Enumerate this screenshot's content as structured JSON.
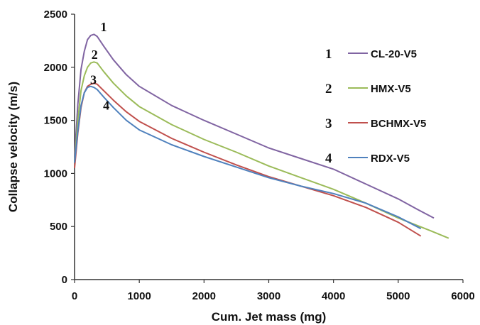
{
  "chart_data": {
    "type": "line",
    "xlabel": "Cum. Jet mass (mg)",
    "ylabel": "Collapse velocity (m/s)",
    "xlim": [
      0,
      6000
    ],
    "ylim": [
      0,
      2500
    ],
    "xticks": [
      "0",
      "1000",
      "2000",
      "3000",
      "4000",
      "5000",
      "6000"
    ],
    "yticks": [
      "0",
      "500",
      "1000",
      "1500",
      "2000",
      "2500"
    ],
    "grid": false,
    "legend_position": "top-right",
    "series": [
      {
        "name": "CL-20-V5",
        "number": "1",
        "color": "#8064A2",
        "x": [
          0,
          50,
          100,
          150,
          200,
          250,
          300,
          350,
          450,
          600,
          800,
          1000,
          1500,
          2000,
          2500,
          3000,
          3500,
          4000,
          4500,
          5000,
          5300,
          5550
        ],
        "y": [
          1150,
          1650,
          1980,
          2150,
          2260,
          2300,
          2310,
          2290,
          2200,
          2070,
          1930,
          1820,
          1640,
          1500,
          1370,
          1240,
          1140,
          1040,
          900,
          760,
          660,
          580
        ]
      },
      {
        "name": "HMX-V5",
        "number": "2",
        "color": "#9BBB59",
        "x": [
          0,
          50,
          100,
          150,
          200,
          250,
          300,
          350,
          450,
          600,
          800,
          1000,
          1500,
          2000,
          2500,
          3000,
          3500,
          4000,
          4500,
          5000,
          5500,
          5780
        ],
        "y": [
          1100,
          1500,
          1780,
          1920,
          2000,
          2040,
          2050,
          2040,
          1960,
          1850,
          1730,
          1630,
          1460,
          1320,
          1200,
          1070,
          960,
          850,
          720,
          580,
          460,
          390
        ]
      },
      {
        "name": "BCHMX-V5",
        "number": "3",
        "color": "#C0504D",
        "x": [
          0,
          50,
          100,
          150,
          200,
          250,
          300,
          350,
          450,
          600,
          800,
          1000,
          1500,
          2000,
          2500,
          3000,
          3500,
          4000,
          4500,
          5000,
          5350
        ],
        "y": [
          1050,
          1380,
          1620,
          1760,
          1820,
          1840,
          1850,
          1840,
          1780,
          1690,
          1580,
          1490,
          1330,
          1200,
          1080,
          970,
          880,
          790,
          680,
          540,
          410
        ]
      },
      {
        "name": "RDX-V5",
        "number": "4",
        "color": "#4F81BD",
        "x": [
          0,
          50,
          100,
          150,
          200,
          250,
          300,
          350,
          450,
          600,
          800,
          1000,
          1500,
          2000,
          2500,
          3000,
          3500,
          4000,
          4500,
          5000,
          5350
        ],
        "y": [
          1100,
          1400,
          1640,
          1760,
          1810,
          1820,
          1810,
          1790,
          1720,
          1620,
          1500,
          1410,
          1270,
          1160,
          1060,
          960,
          880,
          810,
          720,
          590,
          480
        ]
      }
    ],
    "curve_labels": [
      {
        "text": "1",
        "x": 450,
        "y": 2340
      },
      {
        "text": "2",
        "x": 310,
        "y": 2080
      },
      {
        "text": "3",
        "x": 290,
        "y": 1840
      },
      {
        "text": "4",
        "x": 490,
        "y": 1600
      }
    ]
  }
}
